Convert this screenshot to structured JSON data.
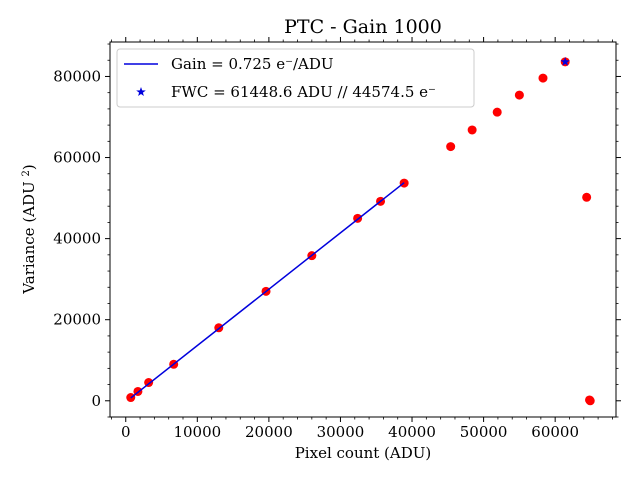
{
  "chart_data": {
    "type": "scatter",
    "title": "PTC - Gain 1000",
    "xlabel": "Pixel count (ADU)",
    "ylabel": "Variance (ADU²)",
    "xlim": [
      -2200,
      68500
    ],
    "ylim": [
      -4000,
      88500
    ],
    "xticks": [
      0,
      10000,
      20000,
      30000,
      40000,
      50000,
      60000
    ],
    "xtick_labels": [
      "0",
      "10000",
      "20000",
      "30000",
      "40000",
      "50000",
      "60000"
    ],
    "yticks": [
      0,
      20000,
      40000,
      60000,
      80000
    ],
    "ytick_labels": [
      "0",
      "20000",
      "40000",
      "60000",
      "80000"
    ],
    "x_minor_step": 2000,
    "y_minor_step": 4000,
    "grid": false,
    "legend_position": "top-left",
    "series": [
      {
        "name": "",
        "kind": "points",
        "color": "#ff0000",
        "x": [
          700,
          1700,
          3200,
          6700,
          13000,
          19600,
          26000,
          32400,
          35600,
          38900,
          45400,
          48400,
          51900,
          55000,
          58300,
          61400,
          64400,
          64800,
          64900
        ],
        "y": [
          800,
          2300,
          4500,
          9000,
          18000,
          27000,
          35800,
          45000,
          49200,
          53700,
          62700,
          66800,
          71200,
          75400,
          79600,
          83600,
          50200,
          200,
          0
        ]
      },
      {
        "name": "Gain = 0.725 e⁻/ADU",
        "kind": "line",
        "color": "#0000dd",
        "x": [
          700,
          38900
        ],
        "y": [
          700,
          53800
        ]
      },
      {
        "name": "FWC = 61448.6 ADU // 44574.5 e⁻",
        "kind": "marker",
        "color": "#0000dd",
        "x": [
          61400
        ],
        "y": [
          83600
        ]
      }
    ]
  }
}
